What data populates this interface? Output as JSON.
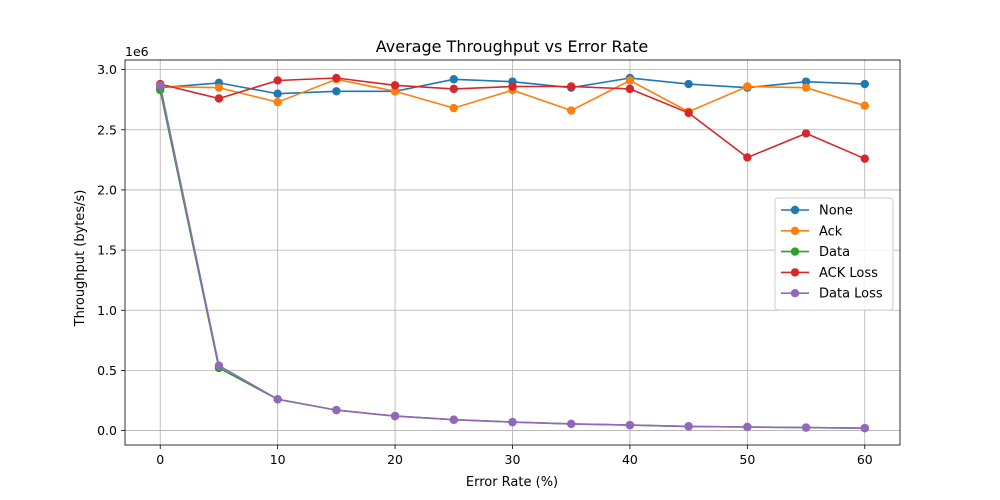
{
  "chart_data": {
    "type": "line",
    "title": "Average Throughput vs Error Rate",
    "xlabel": "Error Rate (%)",
    "ylabel": "Throughput (bytes/s)",
    "y_multiplier_label": "1e6",
    "xlim": [
      -3,
      63
    ],
    "ylim": [
      -0.12,
      3.08
    ],
    "x_ticks": [
      0,
      10,
      20,
      30,
      40,
      50,
      60
    ],
    "x_tick_labels": [
      "0",
      "10",
      "20",
      "30",
      "40",
      "50",
      "60"
    ],
    "y_ticks": [
      0.0,
      0.5,
      1.0,
      1.5,
      2.0,
      2.5,
      3.0
    ],
    "y_tick_labels": [
      "0.0",
      "0.5",
      "1.0",
      "1.5",
      "2.0",
      "2.5",
      "3.0"
    ],
    "grid": true,
    "legend_position": "center-right",
    "x": [
      0,
      5,
      10,
      15,
      20,
      25,
      30,
      35,
      40,
      45,
      50,
      55,
      60
    ],
    "series": [
      {
        "name": "None",
        "color": "#1f77b4",
        "values": [
          2.85,
          2.89,
          2.8,
          2.82,
          2.82,
          2.92,
          2.9,
          2.85,
          2.93,
          2.88,
          2.85,
          2.9,
          2.88
        ]
      },
      {
        "name": "Ack",
        "color": "#ff7f0e",
        "values": [
          2.86,
          2.85,
          2.73,
          2.92,
          2.82,
          2.68,
          2.83,
          2.66,
          2.91,
          2.65,
          2.86,
          2.85,
          2.7
        ]
      },
      {
        "name": "Data",
        "color": "#2ca02c",
        "values": [
          2.83,
          0.52,
          0.26,
          0.17,
          0.12,
          0.09,
          0.07,
          0.055,
          0.045,
          0.035,
          0.03,
          0.025,
          0.02
        ]
      },
      {
        "name": "ACK Loss",
        "color": "#d62728",
        "values": [
          2.88,
          2.76,
          2.91,
          2.93,
          2.87,
          2.84,
          2.86,
          2.86,
          2.84,
          2.64,
          2.27,
          2.47,
          2.26
        ]
      },
      {
        "name": "Data Loss",
        "color": "#9467bd",
        "values": [
          2.87,
          0.54,
          0.26,
          0.17,
          0.12,
          0.09,
          0.07,
          0.055,
          0.045,
          0.035,
          0.03,
          0.025,
          0.02
        ]
      }
    ]
  }
}
